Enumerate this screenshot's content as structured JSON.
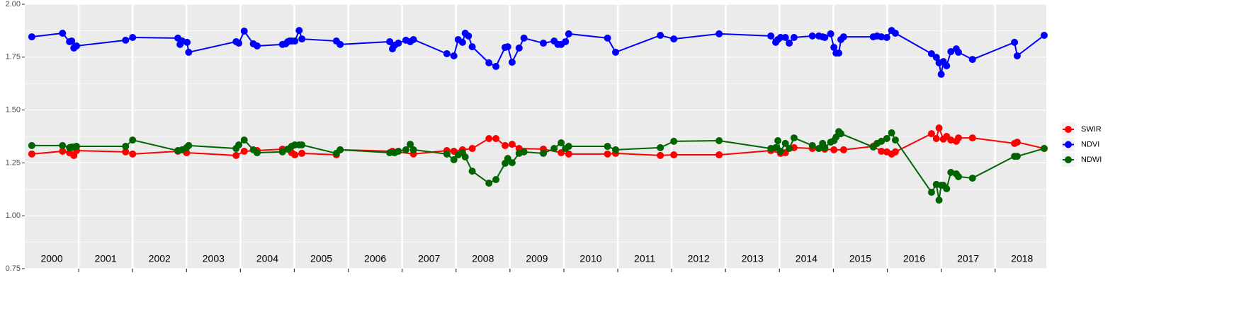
{
  "chart_data": {
    "type": "line",
    "xlim": [
      2000,
      2018.95
    ],
    "xticks": [
      2001,
      2002,
      2003,
      2004,
      2005,
      2006,
      2007,
      2008,
      2009,
      2010,
      2011,
      2012,
      2013,
      2014,
      2015,
      2016,
      2017,
      2018
    ],
    "year_labels": [
      {
        "value": 2000.5,
        "label": "2000"
      },
      {
        "value": 2001.5,
        "label": "2001"
      },
      {
        "value": 2002.5,
        "label": "2002"
      },
      {
        "value": 2003.5,
        "label": "2003"
      },
      {
        "value": 2004.5,
        "label": "2004"
      },
      {
        "value": 2005.5,
        "label": "2005"
      },
      {
        "value": 2006.5,
        "label": "2006"
      },
      {
        "value": 2007.5,
        "label": "2007"
      },
      {
        "value": 2008.5,
        "label": "2008"
      },
      {
        "value": 2009.5,
        "label": "2009"
      },
      {
        "value": 2010.5,
        "label": "2010"
      },
      {
        "value": 2011.5,
        "label": "2011"
      },
      {
        "value": 2012.5,
        "label": "2012"
      },
      {
        "value": 2013.5,
        "label": "2013"
      },
      {
        "value": 2014.5,
        "label": "2014"
      },
      {
        "value": 2015.5,
        "label": "2015"
      },
      {
        "value": 2016.5,
        "label": "2016"
      },
      {
        "value": 2017.5,
        "label": "2017"
      },
      {
        "value": 2018.5,
        "label": "2018"
      }
    ],
    "ylim": [
      0.75,
      2.0
    ],
    "yticks": [
      {
        "value": 0.75,
        "label": "0.75"
      },
      {
        "value": 1.0,
        "label": "1.00"
      },
      {
        "value": 1.25,
        "label": "1.25"
      },
      {
        "value": 1.5,
        "label": "1.50"
      },
      {
        "value": 1.75,
        "label": "1.75"
      },
      {
        "value": 2.0,
        "label": "2.00"
      }
    ],
    "grid": true,
    "legend": "right",
    "series": [
      {
        "name": "SWIR",
        "color": "#ff0000",
        "x": [
          2000.13,
          2000.7,
          2000.83,
          2000.91,
          2000.96,
          2001.87,
          2002.0,
          2002.84,
          2003.0,
          2003.92,
          2004.07,
          2004.31,
          2004.78,
          2004.95,
          2005.01,
          2005.14,
          2005.78,
          2005.85,
          2006.82,
          2007.21,
          2007.83,
          2007.96,
          2008.12,
          2008.3,
          2008.61,
          2008.74,
          2008.91,
          2009.04,
          2009.17,
          2009.62,
          2009.95,
          2010.09,
          2010.81,
          2010.96,
          2011.79,
          2012.04,
          2012.88,
          2013.84,
          2014.02,
          2014.11,
          2014.27,
          2014.61,
          2014.84,
          2015.01,
          2015.19,
          2015.74,
          2015.89,
          2015.99,
          2016.08,
          2016.15,
          2016.82,
          2016.91,
          2016.96,
          2017.04,
          2017.1,
          2017.18,
          2017.28,
          2017.32,
          2017.58,
          2018.36,
          2018.41,
          2018.91
        ],
        "values": [
          1.292,
          1.305,
          1.298,
          1.285,
          1.308,
          1.302,
          1.292,
          1.305,
          1.298,
          1.285,
          1.305,
          1.308,
          1.315,
          1.298,
          1.288,
          1.295,
          1.288,
          1.312,
          1.305,
          1.292,
          1.308,
          1.305,
          1.312,
          1.318,
          1.365,
          1.365,
          1.332,
          1.338,
          1.318,
          1.315,
          1.298,
          1.292,
          1.292,
          1.295,
          1.285,
          1.288,
          1.288,
          1.308,
          1.295,
          1.298,
          1.322,
          1.318,
          1.315,
          1.312,
          1.312,
          1.328,
          1.305,
          1.302,
          1.292,
          1.302,
          1.388,
          1.365,
          1.415,
          1.362,
          1.375,
          1.358,
          1.352,
          1.368,
          1.368,
          1.342,
          1.348,
          1.318
        ]
      },
      {
        "name": "NDVI",
        "color": "#0000ff",
        "x": [
          2000.13,
          2000.7,
          2000.83,
          2000.87,
          2000.91,
          2000.96,
          2001.87,
          2002.0,
          2002.84,
          2002.88,
          2002.92,
          2003.01,
          2003.04,
          2003.92,
          2003.97,
          2004.07,
          2004.24,
          2004.31,
          2004.78,
          2004.84,
          2004.88,
          2004.91,
          2004.95,
          2005.01,
          2005.09,
          2005.14,
          2005.78,
          2005.85,
          2006.77,
          2006.82,
          2006.86,
          2006.93,
          2007.07,
          2007.15,
          2007.21,
          2007.83,
          2007.96,
          2008.04,
          2008.12,
          2008.17,
          2008.23,
          2008.3,
          2008.61,
          2008.74,
          2008.91,
          2008.96,
          2009.04,
          2009.17,
          2009.26,
          2009.62,
          2009.82,
          2009.89,
          2009.95,
          2010.03,
          2010.09,
          2010.81,
          2010.96,
          2011.79,
          2012.04,
          2012.88,
          2013.84,
          2013.93,
          2013.97,
          2014.02,
          2014.11,
          2014.18,
          2014.27,
          2014.61,
          2014.73,
          2014.8,
          2014.84,
          2014.95,
          2015.01,
          2015.05,
          2015.1,
          2015.14,
          2015.19,
          2015.74,
          2015.81,
          2015.89,
          2015.99,
          2016.08,
          2016.15,
          2016.82,
          2016.91,
          2016.96,
          2017.0,
          2017.04,
          2017.1,
          2017.18,
          2017.28,
          2017.32,
          2017.58,
          2018.36,
          2018.41,
          2018.91
        ],
        "values": [
          1.846,
          1.863,
          1.823,
          1.826,
          1.793,
          1.803,
          1.83,
          1.843,
          1.84,
          1.81,
          1.826,
          1.82,
          1.773,
          1.823,
          1.816,
          1.873,
          1.813,
          1.803,
          1.81,
          1.813,
          1.823,
          1.826,
          1.826,
          1.826,
          1.876,
          1.836,
          1.826,
          1.81,
          1.823,
          1.789,
          1.806,
          1.816,
          1.83,
          1.823,
          1.833,
          1.766,
          1.756,
          1.833,
          1.82,
          1.863,
          1.85,
          1.799,
          1.723,
          1.706,
          1.796,
          1.799,
          1.726,
          1.793,
          1.84,
          1.816,
          1.826,
          1.81,
          1.81,
          1.823,
          1.86,
          1.84,
          1.773,
          1.853,
          1.836,
          1.86,
          1.85,
          1.82,
          1.833,
          1.843,
          1.843,
          1.816,
          1.843,
          1.85,
          1.85,
          1.846,
          1.843,
          1.86,
          1.796,
          1.769,
          1.769,
          1.833,
          1.846,
          1.846,
          1.85,
          1.846,
          1.843,
          1.876,
          1.863,
          1.766,
          1.749,
          1.723,
          1.669,
          1.729,
          1.709,
          1.776,
          1.789,
          1.773,
          1.739,
          1.82,
          1.756,
          1.853
        ]
      },
      {
        "name": "NDWI",
        "color": "#006400",
        "x": [
          2000.13,
          2000.7,
          2000.83,
          2000.87,
          2000.91,
          2000.96,
          2001.87,
          2002.0,
          2002.84,
          2002.92,
          2003.0,
          2003.04,
          2003.92,
          2003.97,
          2004.07,
          2004.24,
          2004.31,
          2004.78,
          2004.88,
          2004.95,
          2005.01,
          2005.09,
          2005.14,
          2005.78,
          2005.85,
          2006.77,
          2006.86,
          2006.93,
          2007.07,
          2007.15,
          2007.21,
          2007.83,
          2007.96,
          2008.04,
          2008.12,
          2008.17,
          2008.3,
          2008.61,
          2008.74,
          2008.91,
          2008.96,
          2009.04,
          2009.17,
          2009.26,
          2009.62,
          2009.82,
          2009.95,
          2010.03,
          2010.09,
          2010.81,
          2010.96,
          2011.79,
          2012.04,
          2012.88,
          2013.84,
          2013.93,
          2013.97,
          2014.02,
          2014.11,
          2014.18,
          2014.27,
          2014.61,
          2014.73,
          2014.8,
          2014.84,
          2014.95,
          2015.01,
          2015.05,
          2015.1,
          2015.14,
          2015.74,
          2015.81,
          2015.89,
          2015.99,
          2016.08,
          2016.15,
          2016.82,
          2016.91,
          2016.96,
          2017.0,
          2017.04,
          2017.1,
          2017.18,
          2017.28,
          2017.32,
          2017.58,
          2018.36,
          2018.41,
          2018.91
        ],
        "values": [
          1.332,
          1.332,
          1.322,
          1.325,
          1.325,
          1.328,
          1.328,
          1.358,
          1.308,
          1.312,
          1.322,
          1.332,
          1.318,
          1.335,
          1.358,
          1.312,
          1.298,
          1.302,
          1.315,
          1.328,
          1.335,
          1.335,
          1.335,
          1.295,
          1.312,
          1.298,
          1.298,
          1.305,
          1.312,
          1.338,
          1.312,
          1.292,
          1.265,
          1.288,
          1.298,
          1.278,
          1.211,
          1.154,
          1.171,
          1.248,
          1.271,
          1.251,
          1.295,
          1.302,
          1.295,
          1.318,
          1.345,
          1.318,
          1.328,
          1.328,
          1.312,
          1.322,
          1.352,
          1.355,
          1.318,
          1.322,
          1.355,
          1.305,
          1.342,
          1.318,
          1.368,
          1.332,
          1.318,
          1.342,
          1.322,
          1.348,
          1.355,
          1.372,
          1.398,
          1.388,
          1.325,
          1.342,
          1.352,
          1.365,
          1.392,
          1.358,
          1.111,
          1.148,
          1.074,
          1.144,
          1.144,
          1.128,
          1.205,
          1.198,
          1.185,
          1.178,
          1.281,
          1.281,
          1.318
        ]
      }
    ]
  }
}
